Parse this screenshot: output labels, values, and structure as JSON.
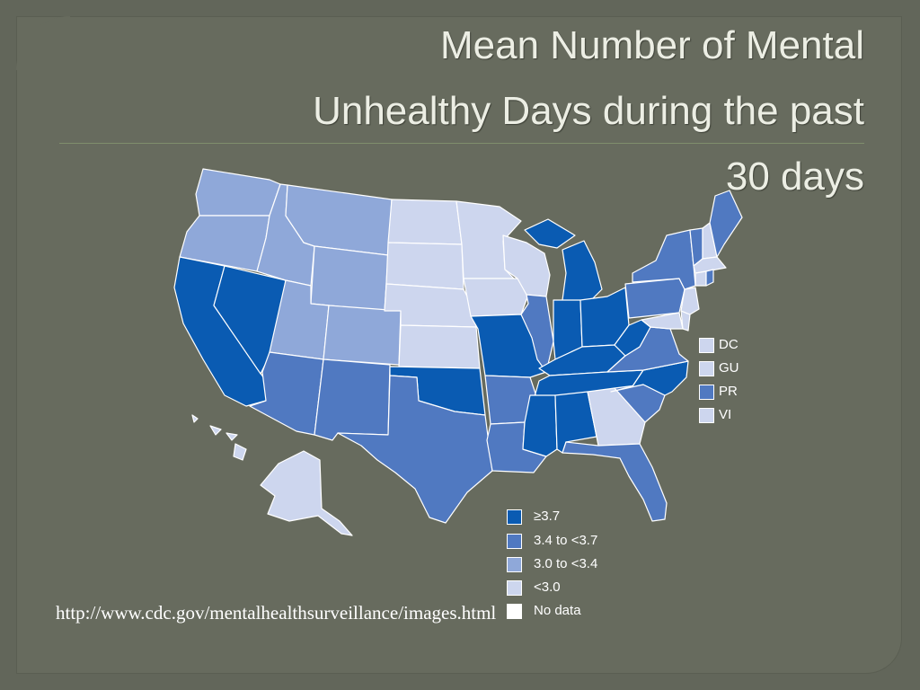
{
  "title": "Mean Number of Mental\nUnhealthy Days during the past\n30 days",
  "source_url": "http://www.cdc.gov/mentalhealthsurveillance/images.html",
  "colors": {
    "ge_3_7": "#0a5bb2",
    "3_4_to_3_7": "#5079c1",
    "3_0_to_3_4": "#8fa8d9",
    "lt_3_0": "#cdd6ee",
    "no_data": "#ffffff"
  },
  "territories_legend": [
    {
      "label": "DC",
      "class": "lt_3_0"
    },
    {
      "label": "GU",
      "class": "lt_3_0"
    },
    {
      "label": "PR",
      "class": "3_4_to_3_7"
    },
    {
      "label": "VI",
      "class": "lt_3_0"
    }
  ],
  "legend": [
    {
      "label": "≥3.7",
      "class": "ge_3_7"
    },
    {
      "label": "3.4 to <3.7",
      "class": "3_4_to_3_7"
    },
    {
      "label": "3.0 to <3.4",
      "class": "3_0_to_3_4"
    },
    {
      "label": "<3.0",
      "class": "lt_3_0"
    },
    {
      "label": "No data",
      "class": "no_data"
    }
  ],
  "states": [
    {
      "name": "WA",
      "class": "3_0_to_3_4"
    },
    {
      "name": "OR",
      "class": "3_0_to_3_4"
    },
    {
      "name": "CA",
      "class": "ge_3_7"
    },
    {
      "name": "NV",
      "class": "ge_3_7"
    },
    {
      "name": "ID",
      "class": "3_0_to_3_4"
    },
    {
      "name": "MT",
      "class": "3_0_to_3_4"
    },
    {
      "name": "WY",
      "class": "3_0_to_3_4"
    },
    {
      "name": "UT",
      "class": "3_0_to_3_4"
    },
    {
      "name": "CO",
      "class": "3_0_to_3_4"
    },
    {
      "name": "AZ",
      "class": "3_4_to_3_7"
    },
    {
      "name": "NM",
      "class": "3_4_to_3_7"
    },
    {
      "name": "ND",
      "class": "lt_3_0"
    },
    {
      "name": "SD",
      "class": "lt_3_0"
    },
    {
      "name": "NE",
      "class": "lt_3_0"
    },
    {
      "name": "KS",
      "class": "lt_3_0"
    },
    {
      "name": "OK",
      "class": "ge_3_7"
    },
    {
      "name": "TX",
      "class": "3_4_to_3_7"
    },
    {
      "name": "MN",
      "class": "lt_3_0"
    },
    {
      "name": "IA",
      "class": "lt_3_0"
    },
    {
      "name": "MO",
      "class": "ge_3_7"
    },
    {
      "name": "AR",
      "class": "3_4_to_3_7"
    },
    {
      "name": "LA",
      "class": "3_4_to_3_7"
    },
    {
      "name": "WI",
      "class": "lt_3_0"
    },
    {
      "name": "IL",
      "class": "3_4_to_3_7"
    },
    {
      "name": "MI",
      "class": "ge_3_7"
    },
    {
      "name": "IN",
      "class": "ge_3_7"
    },
    {
      "name": "OH",
      "class": "ge_3_7"
    },
    {
      "name": "KY",
      "class": "ge_3_7"
    },
    {
      "name": "TN",
      "class": "ge_3_7"
    },
    {
      "name": "MS",
      "class": "ge_3_7"
    },
    {
      "name": "AL",
      "class": "ge_3_7"
    },
    {
      "name": "GA",
      "class": "lt_3_0"
    },
    {
      "name": "FL",
      "class": "3_4_to_3_7"
    },
    {
      "name": "SC",
      "class": "3_4_to_3_7"
    },
    {
      "name": "NC",
      "class": "ge_3_7"
    },
    {
      "name": "VA",
      "class": "3_4_to_3_7"
    },
    {
      "name": "WV",
      "class": "ge_3_7"
    },
    {
      "name": "PA",
      "class": "3_4_to_3_7"
    },
    {
      "name": "NY",
      "class": "3_4_to_3_7"
    },
    {
      "name": "VT",
      "class": "3_4_to_3_7"
    },
    {
      "name": "NH",
      "class": "lt_3_0"
    },
    {
      "name": "ME",
      "class": "3_4_to_3_7"
    },
    {
      "name": "MA",
      "class": "lt_3_0"
    },
    {
      "name": "CT",
      "class": "lt_3_0"
    },
    {
      "name": "RI",
      "class": "3_4_to_3_7"
    },
    {
      "name": "NJ",
      "class": "lt_3_0"
    },
    {
      "name": "DE",
      "class": "lt_3_0"
    },
    {
      "name": "MD",
      "class": "lt_3_0"
    },
    {
      "name": "AK",
      "class": "lt_3_0"
    },
    {
      "name": "HI",
      "class": "lt_3_0"
    }
  ]
}
